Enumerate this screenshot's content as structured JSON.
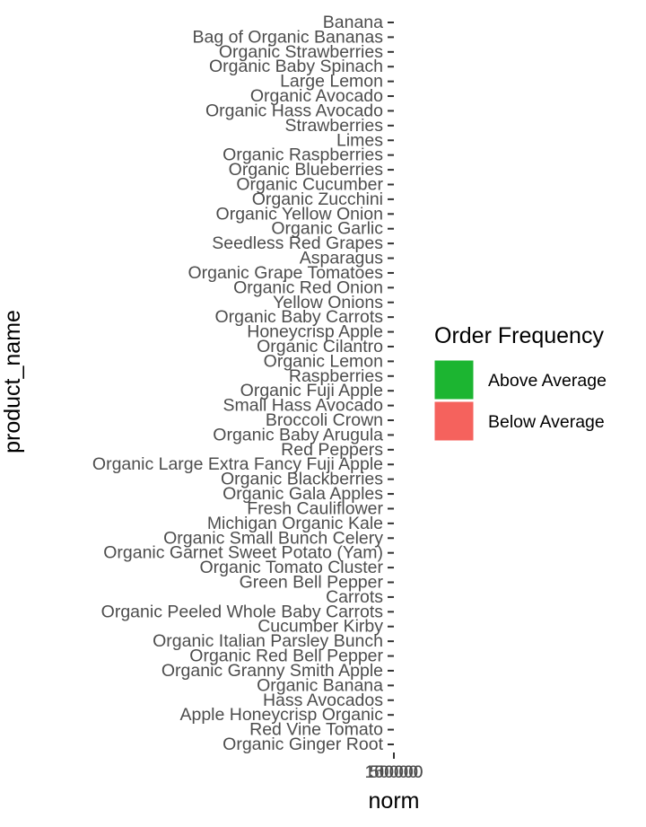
{
  "chart_data": {
    "type": "bar",
    "orientation": "horizontal",
    "xlabel": "norm",
    "ylabel": "product_name",
    "x_tick_labels": [
      "150000",
      "50000",
      "100000"
    ],
    "categories": [
      "Banana",
      "Bag of Organic Bananas",
      "Organic Strawberries",
      "Organic Baby Spinach",
      "Large Lemon",
      "Organic Avocado",
      "Organic Hass Avocado",
      "Strawberries",
      "Limes",
      "Organic Raspberries",
      "Organic Blueberries",
      "Organic Cucumber",
      "Organic Zucchini",
      "Organic Yellow Onion",
      "Organic Garlic",
      "Seedless Red Grapes",
      "Asparagus",
      "Organic Grape Tomatoes",
      "Organic Red Onion",
      "Yellow Onions",
      "Organic Baby Carrots",
      "Honeycrisp Apple",
      "Organic Cilantro",
      "Organic Lemon",
      "Raspberries",
      "Organic Fuji Apple",
      "Small Hass Avocado",
      "Broccoli Crown",
      "Organic Baby Arugula",
      "Red Peppers",
      "Organic Large Extra Fancy Fuji Apple",
      "Organic Blackberries",
      "Organic Gala Apples",
      "Fresh Cauliflower",
      "Michigan Organic Kale",
      "Organic Small Bunch Celery",
      "Organic Garnet Sweet Potato (Yam)",
      "Organic Tomato Cluster",
      "Green Bell Pepper",
      "Carrots",
      "Organic Peeled Whole Baby Carrots",
      "Cucumber Kirby",
      "Organic Italian Parsley Bunch",
      "Organic Red Bell Pepper",
      "Organic Granny Smith Apple",
      "Organic Banana",
      "Hass Avocados",
      "Apple Honeycrisp Organic",
      "Red Vine Tomato",
      "Organic Ginger Root"
    ],
    "legend": {
      "title": "Order Frequency",
      "position": "right",
      "entries": [
        {
          "label": "Above Average",
          "color": "#1cb531"
        },
        {
          "label": "Below Average",
          "color": "#f5625d"
        }
      ]
    },
    "colors": {
      "axis_text": "#4d4d4d",
      "tick": "#333333",
      "background": "#ffffff"
    },
    "grid": false
  }
}
